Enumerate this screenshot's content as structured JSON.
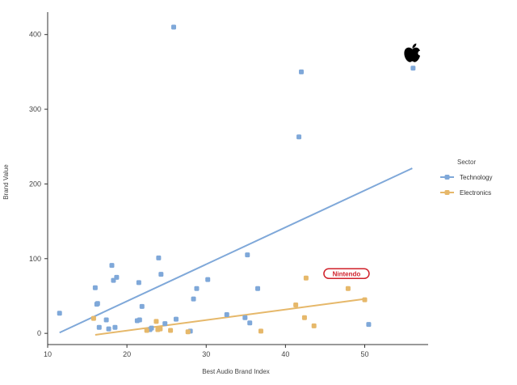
{
  "chart_data": {
    "type": "scatter",
    "xlabel": "Best Audio Brand Index",
    "ylabel": "Brand Value",
    "xlim": [
      10,
      58
    ],
    "ylim": [
      -15,
      430
    ],
    "xticks": [
      10,
      20,
      30,
      40,
      50
    ],
    "yticks": [
      0,
      100,
      200,
      300,
      400
    ],
    "grid": false,
    "legend": {
      "title": "Sector",
      "placement": "right"
    },
    "series": [
      {
        "name": "Technology",
        "color": "#7fa8d9",
        "points": [
          [
            11.5,
            27
          ],
          [
            16,
            61
          ],
          [
            16.2,
            39
          ],
          [
            16.3,
            40
          ],
          [
            16.5,
            8
          ],
          [
            17.4,
            18
          ],
          [
            17.7,
            6
          ],
          [
            18.1,
            91
          ],
          [
            18.3,
            71
          ],
          [
            18.5,
            8
          ],
          [
            18.7,
            75
          ],
          [
            21.3,
            17
          ],
          [
            21.5,
            68
          ],
          [
            21.6,
            18
          ],
          [
            21.9,
            36
          ],
          [
            22.9,
            5
          ],
          [
            23.1,
            7
          ],
          [
            24,
            101
          ],
          [
            24.3,
            79
          ],
          [
            24.8,
            13
          ],
          [
            25.9,
            410
          ],
          [
            26.2,
            19
          ],
          [
            28,
            3
          ],
          [
            28.4,
            46
          ],
          [
            28.8,
            60
          ],
          [
            30.2,
            72
          ],
          [
            32.6,
            25
          ],
          [
            34.9,
            21
          ],
          [
            35.2,
            105
          ],
          [
            35.5,
            14
          ],
          [
            36.5,
            60
          ],
          [
            41.7,
            263
          ],
          [
            42,
            350
          ],
          [
            50.5,
            12
          ],
          [
            56.1,
            355
          ]
        ],
        "trend": [
          [
            11.5,
            1
          ],
          [
            56,
            221
          ]
        ]
      },
      {
        "name": "Electronics",
        "color": "#e6b86a",
        "points": [
          [
            15.8,
            20
          ],
          [
            22.5,
            4
          ],
          [
            23.7,
            16
          ],
          [
            23.9,
            5
          ],
          [
            24.2,
            6
          ],
          [
            25.5,
            4
          ],
          [
            27.7,
            2
          ],
          [
            36.9,
            3
          ],
          [
            41.3,
            38
          ],
          [
            42.4,
            21
          ],
          [
            42.6,
            74
          ],
          [
            43.6,
            10
          ],
          [
            47.9,
            60
          ],
          [
            50,
            45
          ]
        ],
        "trend": [
          [
            16,
            -2
          ],
          [
            50,
            46
          ]
        ]
      }
    ],
    "annotations": [
      {
        "kind": "apple-logo",
        "x": 56,
        "y": 375
      },
      {
        "kind": "nintendo-logo",
        "text": "Nintendo",
        "x": 47.7,
        "y": 80
      }
    ]
  }
}
